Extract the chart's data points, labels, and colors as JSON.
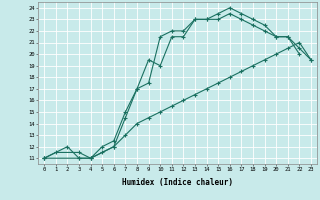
{
  "xlabel": "Humidex (Indice chaleur)",
  "ylabel": "",
  "bg_color": "#c8eaea",
  "line_color": "#1a7060",
  "grid_color": "#ffffff",
  "xlim": [
    -0.5,
    23.5
  ],
  "ylim": [
    10.5,
    24.5
  ],
  "xticks": [
    0,
    1,
    2,
    3,
    4,
    5,
    6,
    7,
    8,
    9,
    10,
    11,
    12,
    13,
    14,
    15,
    16,
    17,
    18,
    19,
    20,
    21,
    22,
    23
  ],
  "yticks": [
    11,
    12,
    13,
    14,
    15,
    16,
    17,
    18,
    19,
    20,
    21,
    22,
    23,
    24
  ],
  "line1_x": [
    0,
    1,
    3,
    4,
    6,
    7,
    8,
    9,
    10,
    11,
    12,
    13,
    14,
    15,
    16,
    17,
    18,
    19,
    20,
    21,
    22
  ],
  "line1_y": [
    11,
    11.5,
    11.5,
    11,
    12,
    14.5,
    17,
    19.5,
    19,
    21.5,
    21.5,
    23,
    23,
    23.5,
    24,
    23.5,
    23,
    22.5,
    21.5,
    21.5,
    20
  ],
  "line2_x": [
    0,
    2,
    3,
    4,
    5,
    6,
    7,
    8,
    9,
    10,
    11,
    12,
    13,
    14,
    15,
    16,
    17,
    18,
    19,
    20,
    21,
    22,
    23
  ],
  "line2_y": [
    11,
    12,
    11,
    11,
    12,
    12.5,
    15,
    17,
    17.5,
    21.5,
    22,
    22,
    23,
    23,
    23,
    23.5,
    23,
    22.5,
    22,
    21.5,
    21.5,
    20.5,
    19.5
  ],
  "line3_x": [
    0,
    3,
    4,
    5,
    6,
    7,
    8,
    9,
    10,
    11,
    12,
    13,
    14,
    15,
    16,
    17,
    18,
    19,
    20,
    21,
    22,
    23
  ],
  "line3_y": [
    11,
    11,
    11,
    11.5,
    12,
    13,
    14,
    14.5,
    15,
    15.5,
    16,
    16.5,
    17,
    17.5,
    18,
    18.5,
    19,
    19.5,
    20,
    20.5,
    21,
    19.5
  ]
}
